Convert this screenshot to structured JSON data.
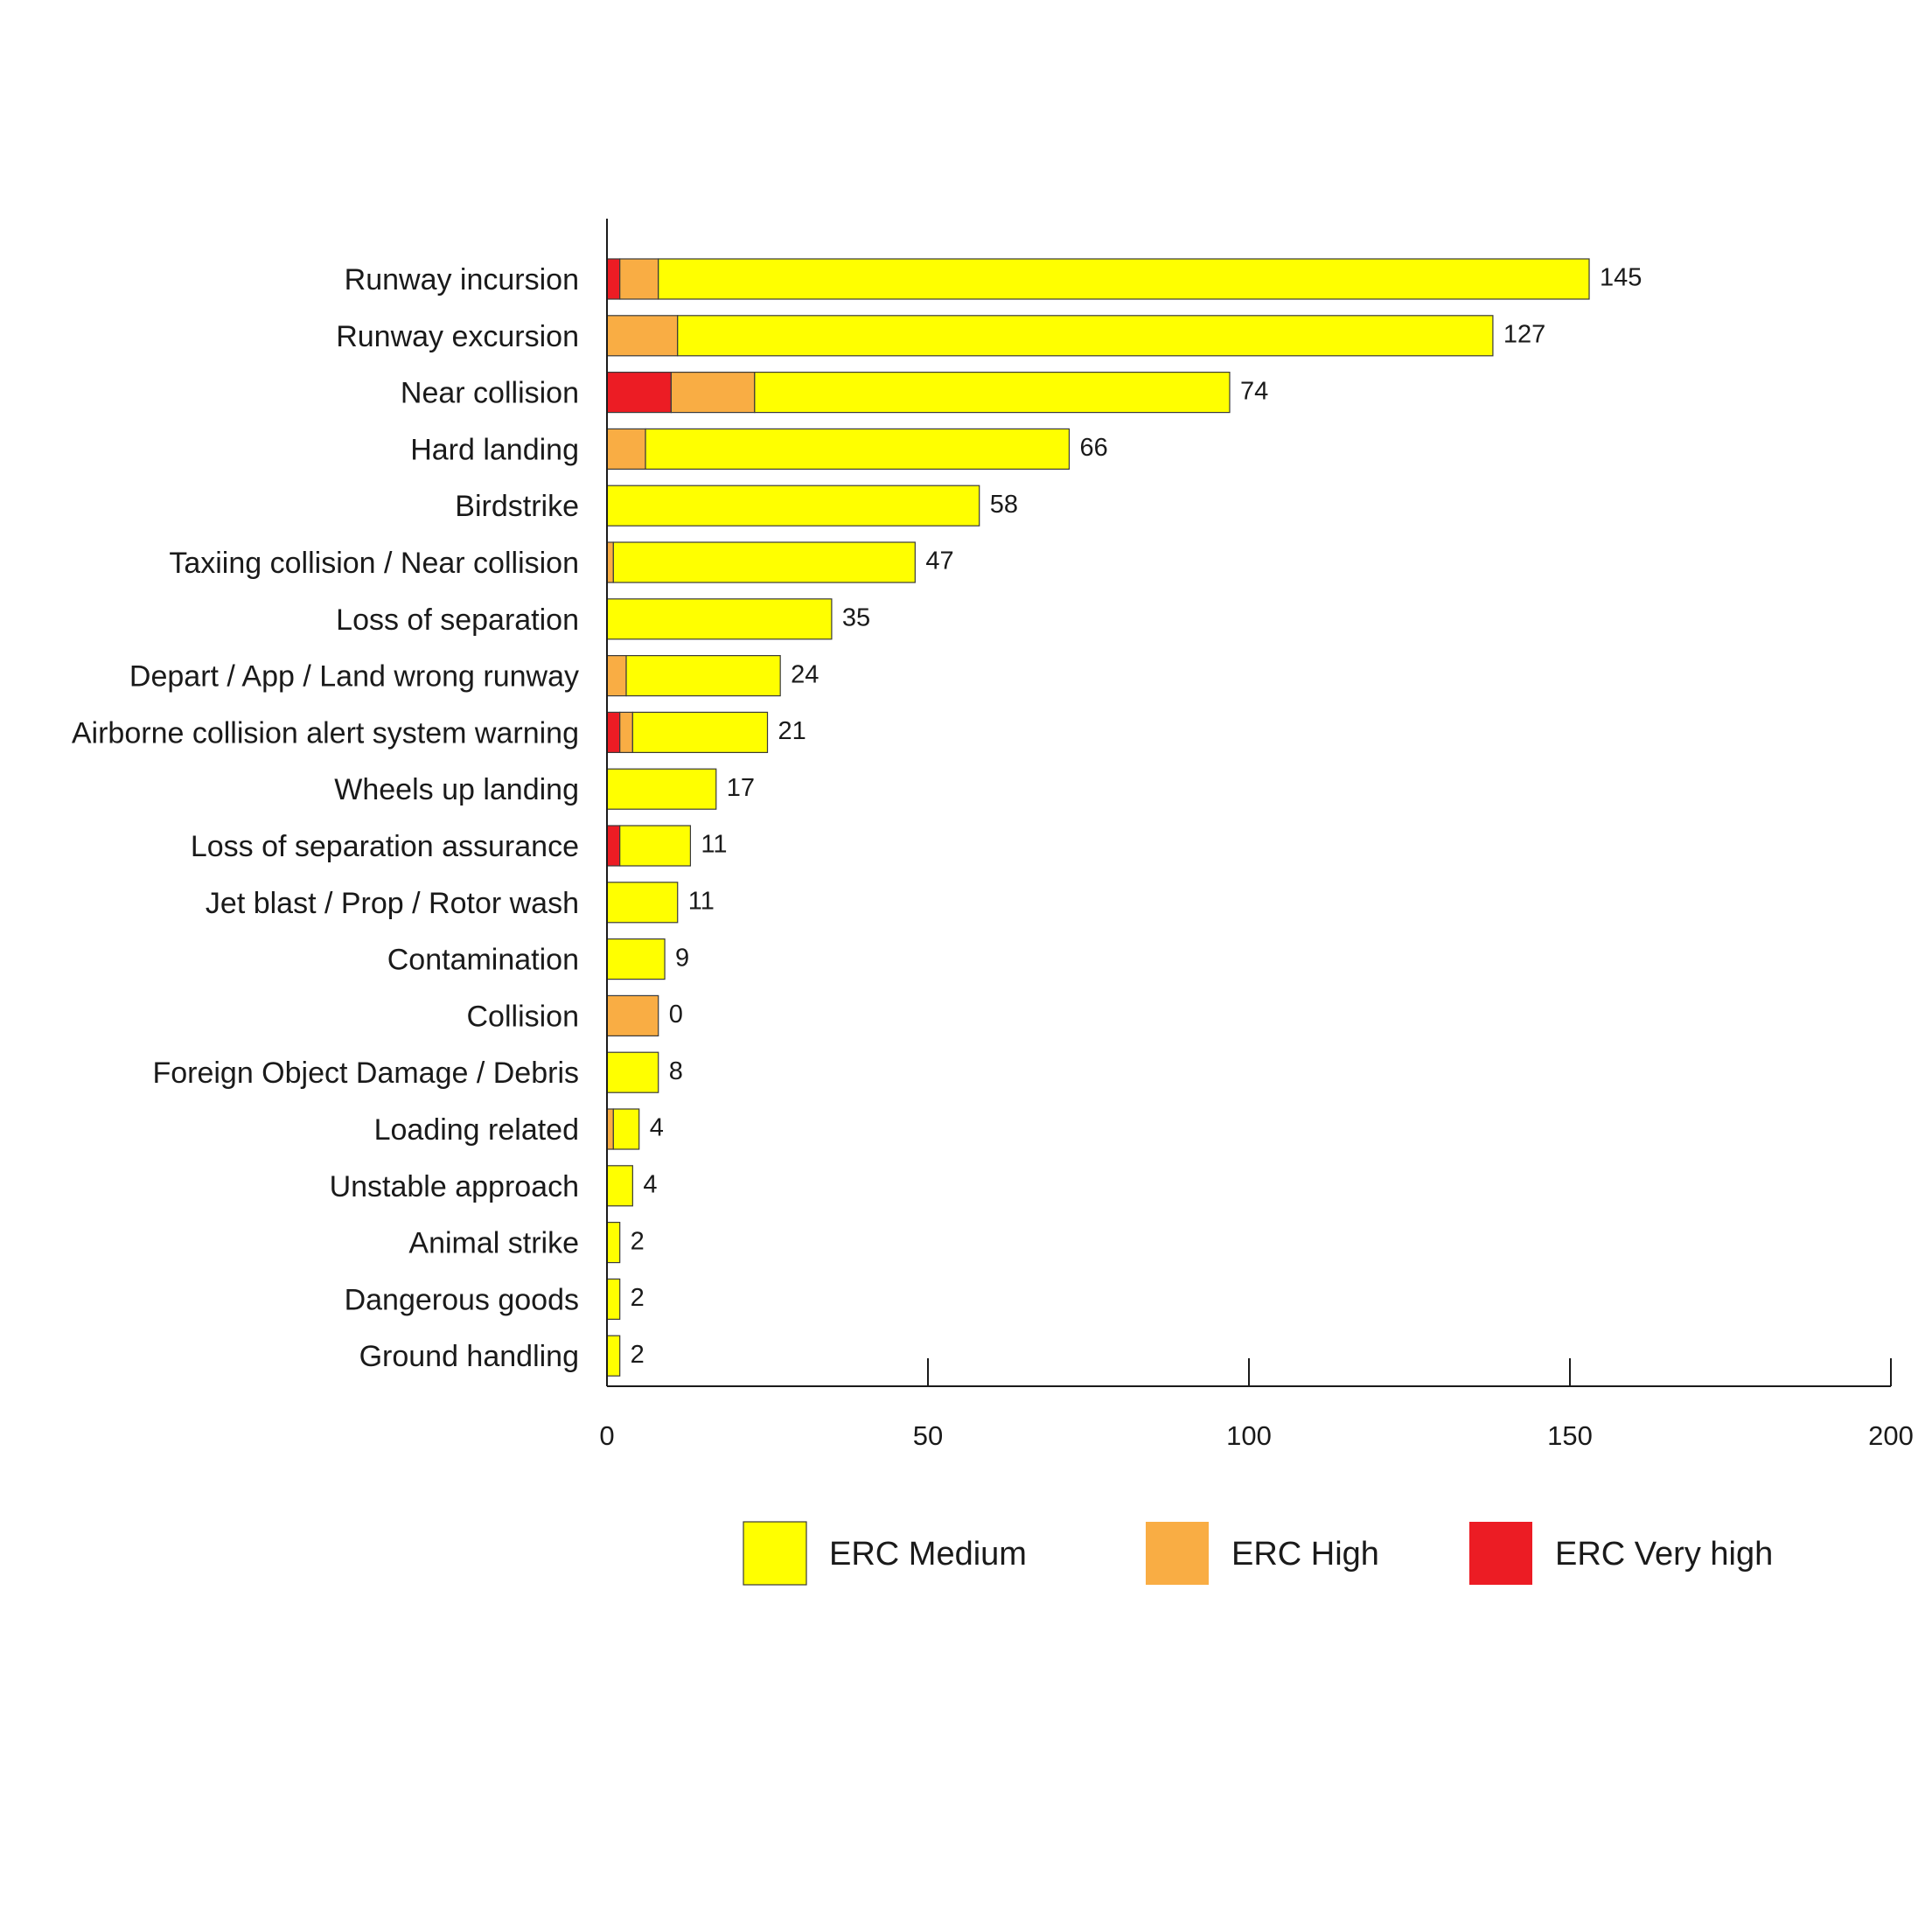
{
  "chart_data": {
    "type": "bar",
    "orientation": "horizontal",
    "stacked": true,
    "categories": [
      "Runway incursion",
      "Runway excursion",
      "Near collision",
      "Hard landing",
      "Birdstrike",
      "Taxiing collision / Near collision",
      "Loss of separation",
      "Depart / App / Land wrong runway",
      "Airborne collision alert system warning",
      "Wheels up landing",
      "Loss of separation assurance",
      "Jet blast / Prop / Rotor wash",
      "Contamination",
      "Collision",
      "Foreign Object Damage / Debris",
      "Loading related",
      "Unstable approach",
      "Animal strike",
      "Dangerous goods",
      "Ground handling"
    ],
    "series": [
      {
        "name": "ERC Very high",
        "color": "#ec1c24",
        "values": [
          2,
          0,
          10,
          0,
          0,
          0,
          0,
          0,
          2,
          0,
          2,
          0,
          0,
          0,
          0,
          0,
          0,
          0,
          0,
          0
        ]
      },
      {
        "name": "ERC High",
        "color": "#f9ad44",
        "values": [
          6,
          11,
          13,
          6,
          0,
          1,
          0,
          3,
          2,
          0,
          0,
          0,
          0,
          8,
          0,
          1,
          0,
          0,
          0,
          0
        ]
      },
      {
        "name": "ERC Medium",
        "color": "#ffff00",
        "values": [
          145,
          127,
          74,
          66,
          58,
          47,
          35,
          24,
          21,
          17,
          11,
          11,
          9,
          0,
          8,
          4,
          4,
          2,
          2,
          2
        ]
      }
    ],
    "data_labels": [
      "145",
      "127",
      "74",
      "66",
      "58",
      "47",
      "35",
      "24",
      "21",
      "17",
      "11",
      "11",
      "9",
      "0",
      "8",
      "4",
      "4",
      "2",
      "2",
      "2"
    ],
    "xlim": [
      0,
      200
    ],
    "xticks": [
      "0",
      "50",
      "100",
      "150",
      "200"
    ],
    "title": "",
    "xlabel": "",
    "ylabel": "",
    "grid": false,
    "legend": {
      "position": "bottom",
      "items": [
        {
          "label": "ERC Medium",
          "color": "#ffff00"
        },
        {
          "label": "ERC High",
          "color": "#f9ad44"
        },
        {
          "label": "ERC Very high",
          "color": "#ec1c24"
        }
      ]
    }
  }
}
